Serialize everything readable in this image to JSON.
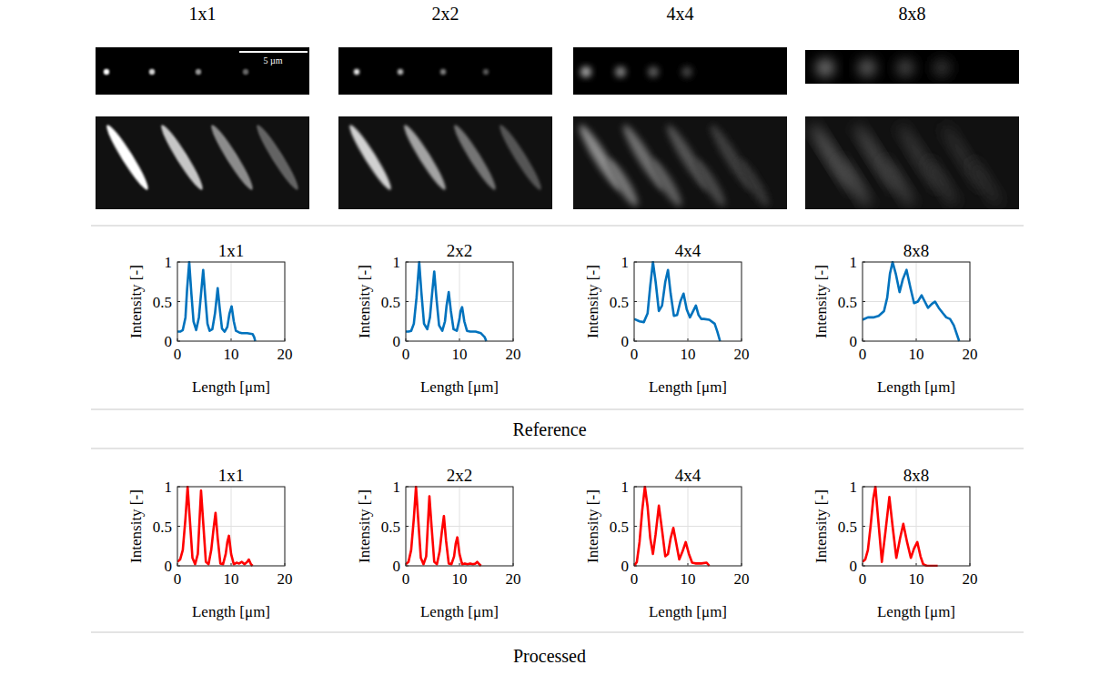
{
  "images": [
    {
      "title": "1x1"
    },
    {
      "title": "2x2"
    },
    {
      "title": "4x4"
    },
    {
      "title": "8x8"
    }
  ],
  "scale_bar": "5 µm",
  "reference_label": "Reference",
  "processed_label": "Processed",
  "chart_data": [
    {
      "type": "line",
      "title": "1x1",
      "x_label": "Length [μm]",
      "y_label": "Intensity [-]",
      "xlim": [
        0,
        20
      ],
      "ylim": [
        0,
        1
      ],
      "xticks": [
        0,
        10,
        20
      ],
      "yticks": [
        0,
        0.5,
        1
      ],
      "grid": true,
      "x": [
        0,
        0.5,
        1,
        1.5,
        1.8,
        2.2,
        2.6,
        3,
        3.5,
        4,
        4.4,
        4.8,
        5.2,
        5.6,
        6,
        6.5,
        7,
        7.5,
        7.9,
        8.3,
        8.8,
        9.3,
        9.7,
        10.1,
        10.5,
        10.9,
        11.5,
        12,
        13,
        14,
        14.3,
        14.5
      ],
      "series": [
        {
          "color": "#0072bd",
          "values": [
            0.12,
            0.12,
            0.14,
            0.3,
            0.65,
            1.0,
            0.6,
            0.25,
            0.14,
            0.3,
            0.6,
            0.9,
            0.55,
            0.22,
            0.13,
            0.15,
            0.35,
            0.67,
            0.4,
            0.16,
            0.12,
            0.18,
            0.35,
            0.44,
            0.25,
            0.13,
            0.11,
            0.1,
            0.1,
            0.09,
            0.05,
            0.0
          ]
        }
      ]
    },
    {
      "type": "line",
      "title": "2x2",
      "x_label": "Length [μm]",
      "y_label": "Intensity [-]",
      "xlim": [
        0,
        20
      ],
      "ylim": [
        0,
        1
      ],
      "xticks": [
        0,
        10,
        20
      ],
      "yticks": [
        0,
        0.5,
        1
      ],
      "grid": true,
      "x": [
        0,
        0.5,
        1,
        1.5,
        2,
        2.5,
        2.9,
        3.4,
        4,
        4.5,
        4.9,
        5.3,
        5.7,
        6.2,
        6.8,
        7.3,
        7.6,
        8.0,
        8.4,
        8.9,
        9.5,
        10,
        10.2,
        10.5,
        10.9,
        11.4,
        12,
        13,
        14,
        14.7,
        15
      ],
      "series": [
        {
          "color": "#0072bd",
          "values": [
            0.12,
            0.12,
            0.13,
            0.22,
            0.55,
            1.0,
            0.62,
            0.22,
            0.15,
            0.3,
            0.6,
            0.88,
            0.55,
            0.2,
            0.13,
            0.25,
            0.45,
            0.62,
            0.38,
            0.15,
            0.13,
            0.28,
            0.38,
            0.43,
            0.25,
            0.13,
            0.12,
            0.12,
            0.1,
            0.05,
            0.0
          ]
        }
      ]
    },
    {
      "type": "line",
      "title": "4x4",
      "x_label": "Length [μm]",
      "y_label": "Intensity [-]",
      "xlim": [
        0,
        20
      ],
      "ylim": [
        0,
        1
      ],
      "xticks": [
        0,
        10,
        20
      ],
      "yticks": [
        0,
        0.5,
        1
      ],
      "grid": true,
      "x": [
        0,
        1,
        1.8,
        2.5,
        3,
        3.5,
        4,
        4.6,
        5.2,
        5.8,
        6.3,
        6.8,
        7.4,
        8,
        8.6,
        9.2,
        9.8,
        10.4,
        11,
        11.5,
        12,
        12.5,
        13,
        14,
        15,
        15.5,
        16
      ],
      "series": [
        {
          "color": "#0072bd",
          "values": [
            0.28,
            0.25,
            0.24,
            0.35,
            0.7,
            1.0,
            0.75,
            0.38,
            0.45,
            0.75,
            0.9,
            0.6,
            0.32,
            0.33,
            0.5,
            0.6,
            0.4,
            0.3,
            0.38,
            0.45,
            0.33,
            0.28,
            0.28,
            0.27,
            0.22,
            0.12,
            0.0
          ]
        }
      ]
    },
    {
      "type": "line",
      "title": "8x8",
      "x_label": "Length [μm]",
      "y_label": "Intensity [-]",
      "xlim": [
        0,
        20
      ],
      "ylim": [
        0,
        1
      ],
      "xticks": [
        0,
        10,
        20
      ],
      "yticks": [
        0,
        0.5,
        1
      ],
      "grid": true,
      "x": [
        0,
        1,
        2,
        3,
        4,
        4.6,
        5.1,
        5.6,
        6.2,
        6.9,
        7.5,
        8.2,
        8.9,
        9.6,
        10.3,
        11,
        11.6,
        12.2,
        12.9,
        13.5,
        14.2,
        15,
        15.6,
        16.3,
        17,
        17.6,
        18
      ],
      "series": [
        {
          "color": "#0072bd",
          "values": [
            0.27,
            0.3,
            0.3,
            0.32,
            0.38,
            0.55,
            0.85,
            1.0,
            0.85,
            0.62,
            0.78,
            0.9,
            0.68,
            0.48,
            0.5,
            0.58,
            0.5,
            0.42,
            0.47,
            0.5,
            0.42,
            0.35,
            0.3,
            0.28,
            0.2,
            0.08,
            0.0
          ]
        }
      ]
    },
    {
      "type": "line",
      "title": "1x1",
      "x_label": "Length [μm]",
      "y_label": "Intensity [-]",
      "xlim": [
        0,
        20
      ],
      "ylim": [
        0,
        1
      ],
      "xticks": [
        0,
        10,
        20
      ],
      "yticks": [
        0,
        0.5,
        1
      ],
      "grid": true,
      "x": [
        0,
        0.5,
        1,
        1.5,
        1.9,
        2.3,
        2.8,
        3.3,
        3.8,
        4.1,
        4.4,
        4.8,
        5.3,
        5.8,
        6.3,
        6.7,
        7.1,
        7.5,
        8,
        8.5,
        9,
        9.3,
        9.6,
        10,
        10.5,
        11,
        11.5,
        12,
        12.5,
        13,
        13.3,
        13.7,
        14
      ],
      "series": [
        {
          "color": "#ff0000",
          "values": [
            0.05,
            0.08,
            0.2,
            0.6,
            1.0,
            0.6,
            0.1,
            0.02,
            0.15,
            0.55,
            0.95,
            0.55,
            0.05,
            0.02,
            0.2,
            0.45,
            0.67,
            0.35,
            0.03,
            0.02,
            0.15,
            0.3,
            0.38,
            0.15,
            0.02,
            0.04,
            0.03,
            0.05,
            0.02,
            0.05,
            0.08,
            0.02,
            0.0
          ]
        }
      ]
    },
    {
      "type": "line",
      "title": "2x2",
      "x_label": "Length [μm]",
      "y_label": "Intensity [-]",
      "xlim": [
        0,
        20
      ],
      "ylim": [
        0,
        1
      ],
      "xticks": [
        0,
        10,
        20
      ],
      "yticks": [
        0,
        0.5,
        1
      ],
      "grid": true,
      "x": [
        0,
        0.5,
        1,
        1.5,
        1.9,
        2.3,
        2.8,
        3.3,
        3.8,
        4.1,
        4.4,
        4.8,
        5.3,
        5.8,
        6.3,
        6.7,
        7.1,
        7.5,
        8,
        8.5,
        9,
        9.3,
        9.6,
        10,
        10.5,
        11,
        11.5,
        12,
        12.5,
        13,
        13.3,
        13.7,
        14
      ],
      "series": [
        {
          "color": "#ff0000",
          "values": [
            0.02,
            0.05,
            0.2,
            0.6,
            1.0,
            0.6,
            0.1,
            0.02,
            0.12,
            0.5,
            0.88,
            0.5,
            0.05,
            0.02,
            0.18,
            0.42,
            0.63,
            0.32,
            0.03,
            0.02,
            0.12,
            0.28,
            0.36,
            0.15,
            0.02,
            0.03,
            0.02,
            0.03,
            0.02,
            0.03,
            0.05,
            0.02,
            0.0
          ]
        }
      ]
    },
    {
      "type": "line",
      "title": "4x4",
      "x_label": "Length [μm]",
      "y_label": "Intensity [-]",
      "xlim": [
        0,
        20
      ],
      "ylim": [
        0,
        1
      ],
      "xticks": [
        0,
        10,
        20
      ],
      "yticks": [
        0,
        0.5,
        1
      ],
      "grid": true,
      "x": [
        0,
        0.5,
        1,
        1.5,
        2,
        2.5,
        3,
        3.5,
        4,
        4.6,
        5.2,
        5.8,
        6.3,
        6.8,
        7.3,
        7.8,
        8.4,
        9,
        9.6,
        10.2,
        10.8,
        11.5,
        12.5,
        13.5,
        14
      ],
      "series": [
        {
          "color": "#ff0000",
          "values": [
            0.0,
            0.05,
            0.3,
            0.7,
            1.0,
            0.75,
            0.35,
            0.15,
            0.4,
            0.76,
            0.45,
            0.12,
            0.15,
            0.35,
            0.48,
            0.3,
            0.08,
            0.18,
            0.3,
            0.15,
            0.04,
            0.03,
            0.03,
            0.04,
            0.0
          ]
        }
      ]
    },
    {
      "type": "line",
      "title": "8x8",
      "x_label": "Length [μm]",
      "y_label": "Intensity [-]",
      "xlim": [
        0,
        20
      ],
      "ylim": [
        0,
        1
      ],
      "xticks": [
        0,
        10,
        20
      ],
      "yticks": [
        0,
        0.5,
        1
      ],
      "grid": true,
      "x": [
        0,
        0.5,
        1,
        1.5,
        2,
        2.4,
        2.9,
        3.6,
        4.3,
        5,
        5.6,
        6.3,
        7,
        7.6,
        8.3,
        9,
        9.6,
        10.2,
        10.8,
        11.3,
        12,
        13,
        14
      ],
      "series": [
        {
          "color": "#ff0000",
          "values": [
            0.05,
            0.08,
            0.2,
            0.5,
            0.85,
            1.0,
            0.6,
            0.05,
            0.45,
            0.87,
            0.5,
            0.1,
            0.35,
            0.53,
            0.3,
            0.1,
            0.22,
            0.3,
            0.12,
            0.02,
            0.0,
            0.0,
            0.0
          ]
        }
      ]
    }
  ]
}
